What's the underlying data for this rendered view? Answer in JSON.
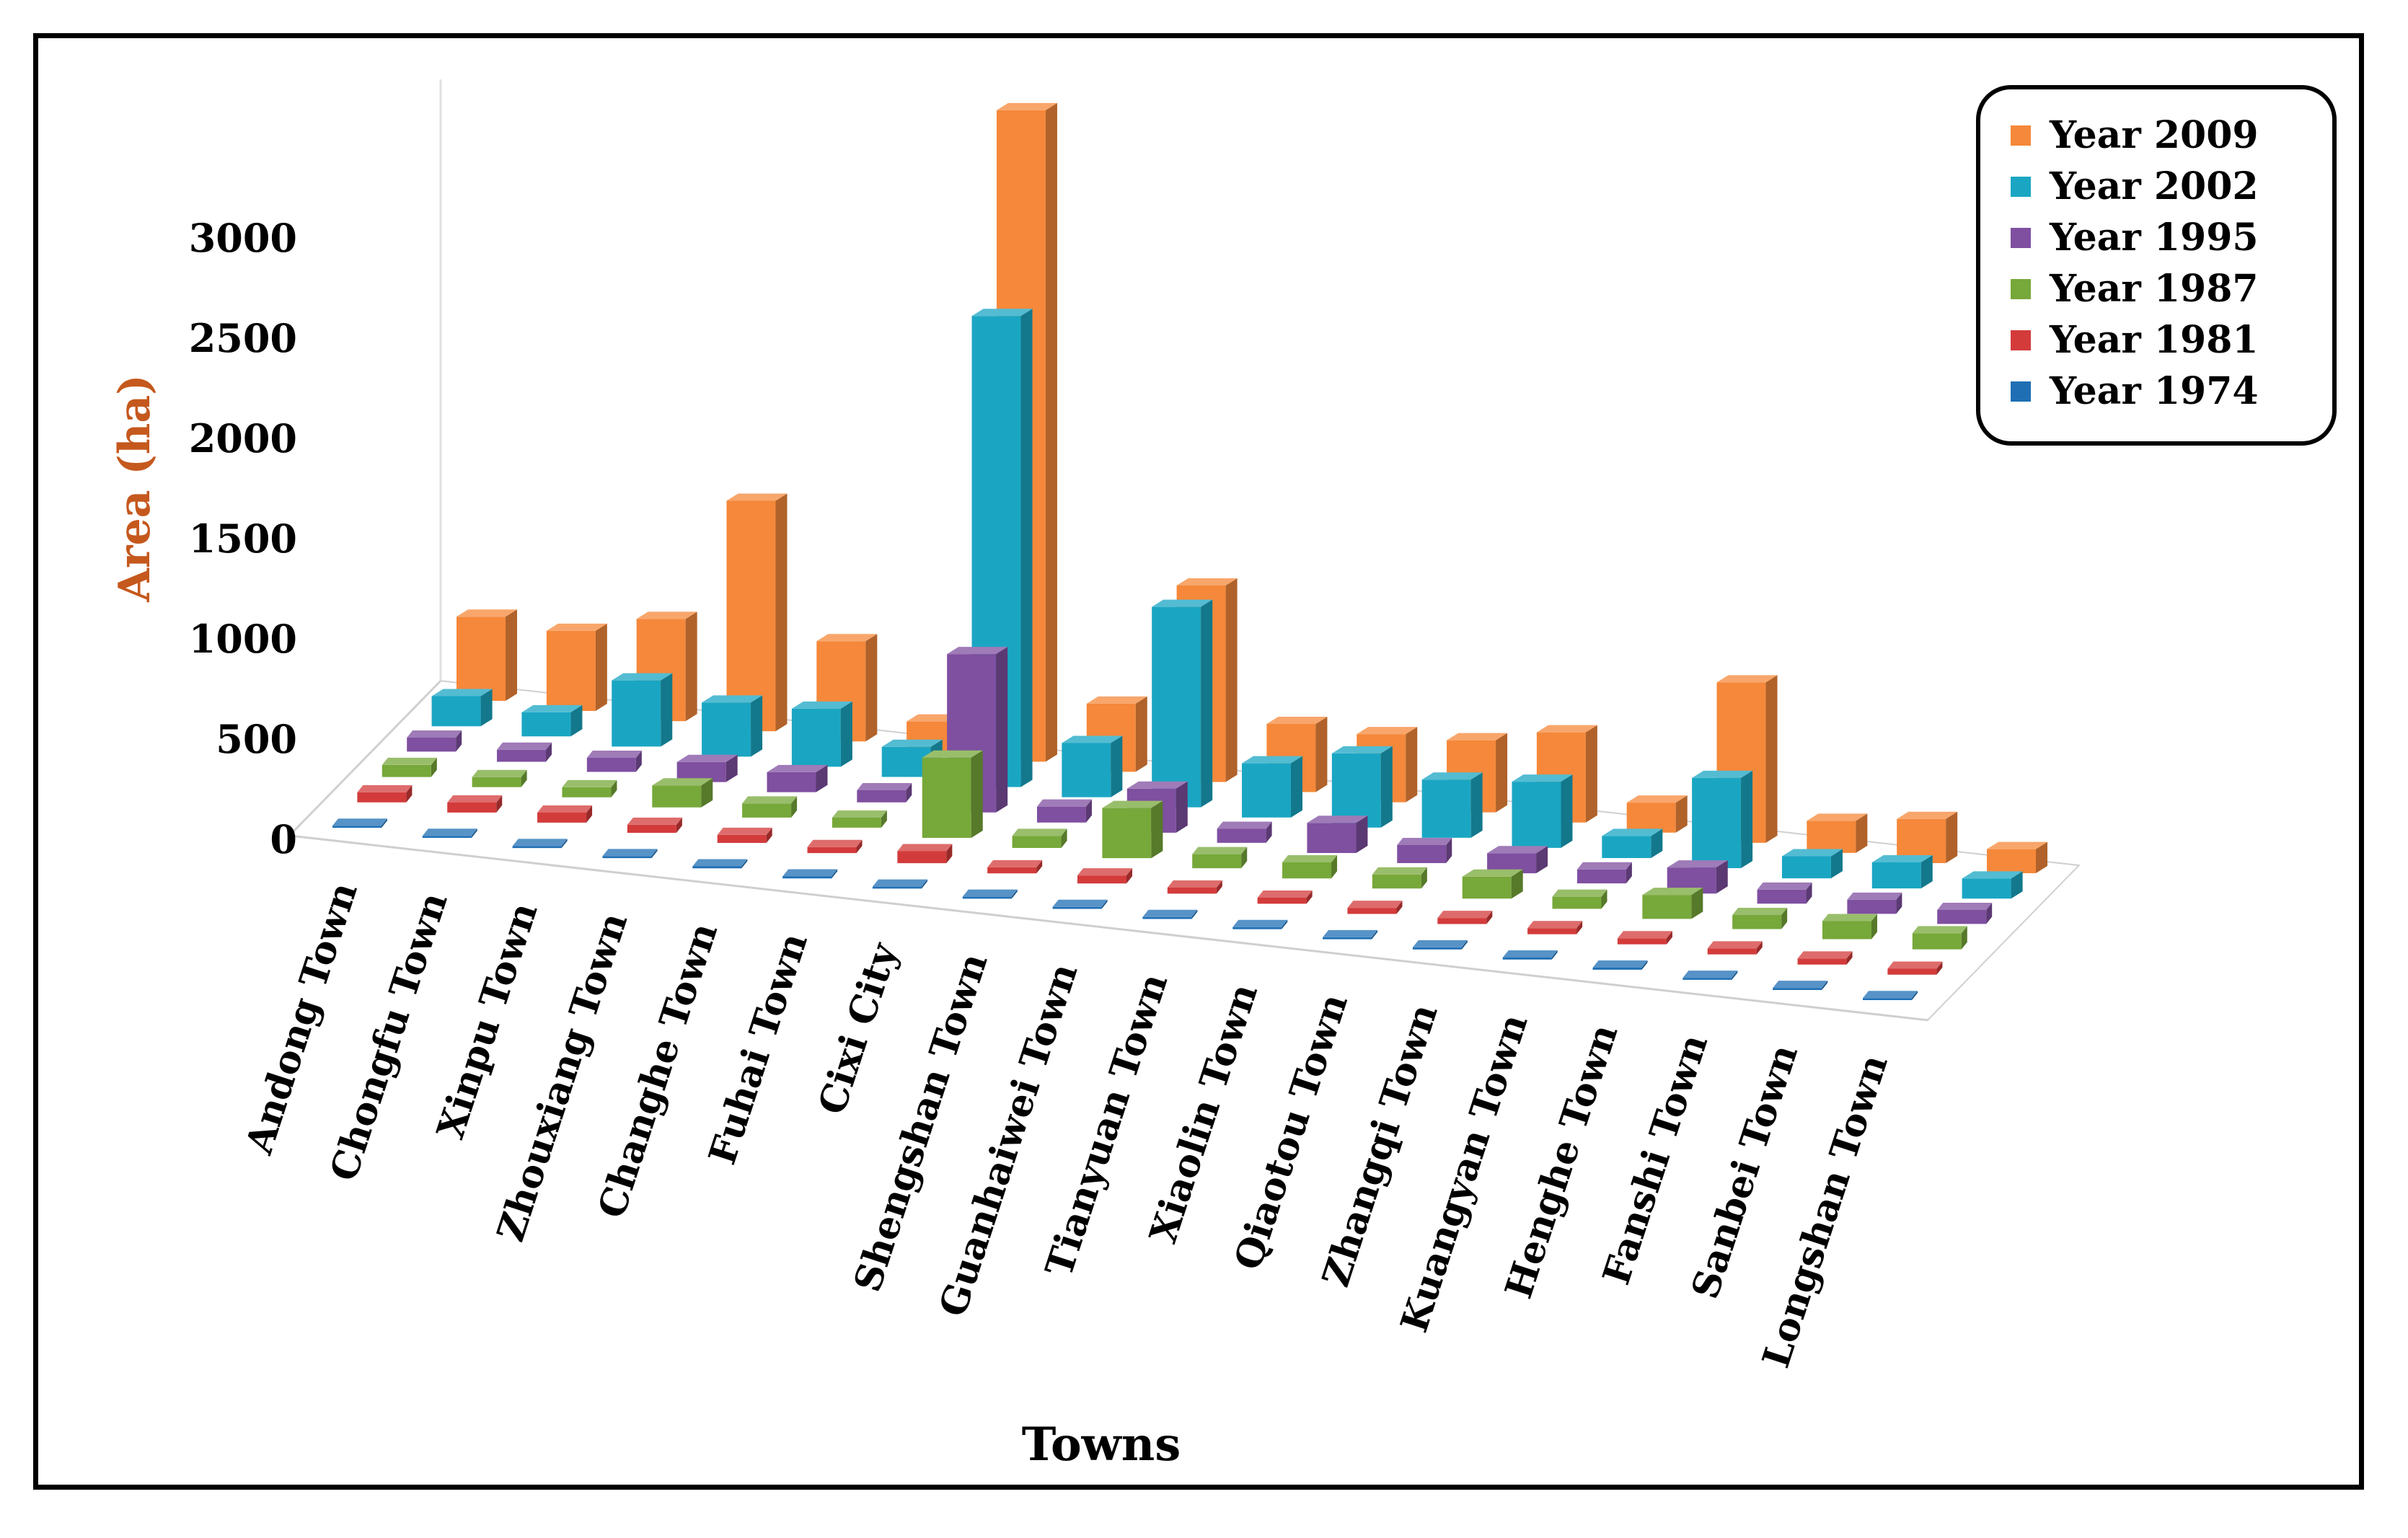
{
  "chart_data": {
    "type": "bar",
    "subtype": "3d-clustered-column",
    "title": "",
    "xlabel": "Towns",
    "ylabel": "Area (ha)",
    "ylim": [
      0,
      3000
    ],
    "yticks": [
      0,
      500,
      1000,
      1500,
      2000,
      2500,
      3000
    ],
    "legend_position": "top-right",
    "categories": [
      "Andong Town",
      "Chongfu Town",
      "Xinpu Town",
      "Zhouxiang Town",
      "Changhe Town",
      "Fuhai Town",
      "Cixi City",
      "Shengshan Town",
      "Guanhaiwei Town",
      "Tianyuan Town",
      "Xiaolin Town",
      "Qiaotou Town",
      "Zhangqi Town",
      "Kuangyan Town",
      "Henghe Town",
      "Fanshi Town",
      "Sanbei Town",
      "Longshan Town"
    ],
    "series": [
      {
        "name": "Year 1974",
        "color": "#1f6fb4",
        "values": [
          10,
          10,
          10,
          10,
          10,
          10,
          10,
          10,
          10,
          10,
          10,
          10,
          10,
          10,
          10,
          10,
          10,
          10
        ]
      },
      {
        "name": "Year 1981",
        "color": "#d33b3b",
        "values": [
          50,
          50,
          50,
          40,
          40,
          30,
          60,
          30,
          40,
          30,
          30,
          30,
          30,
          30,
          30,
          30,
          30,
          30
        ]
      },
      {
        "name": "Year 1987",
        "color": "#77a83a",
        "values": [
          60,
          50,
          50,
          110,
          70,
          50,
          400,
          60,
          250,
          70,
          80,
          70,
          110,
          60,
          120,
          70,
          90,
          80
        ]
      },
      {
        "name": "Year 1995",
        "color": "#7f4fa0",
        "values": [
          70,
          60,
          70,
          100,
          100,
          60,
          790,
          80,
          220,
          70,
          150,
          90,
          100,
          70,
          130,
          70,
          70,
          70
        ]
      },
      {
        "name": "Year 2002",
        "color": "#1aa6c3",
        "values": [
          150,
          120,
          330,
          270,
          290,
          150,
          2350,
          270,
          1000,
          270,
          370,
          290,
          330,
          110,
          450,
          110,
          130,
          100
        ]
      },
      {
        "name": "Year 2009",
        "color": "#f5883a",
        "values": [
          420,
          400,
          510,
          1150,
          500,
          150,
          3250,
          340,
          980,
          340,
          340,
          360,
          450,
          150,
          800,
          160,
          220,
          120
        ]
      }
    ]
  }
}
